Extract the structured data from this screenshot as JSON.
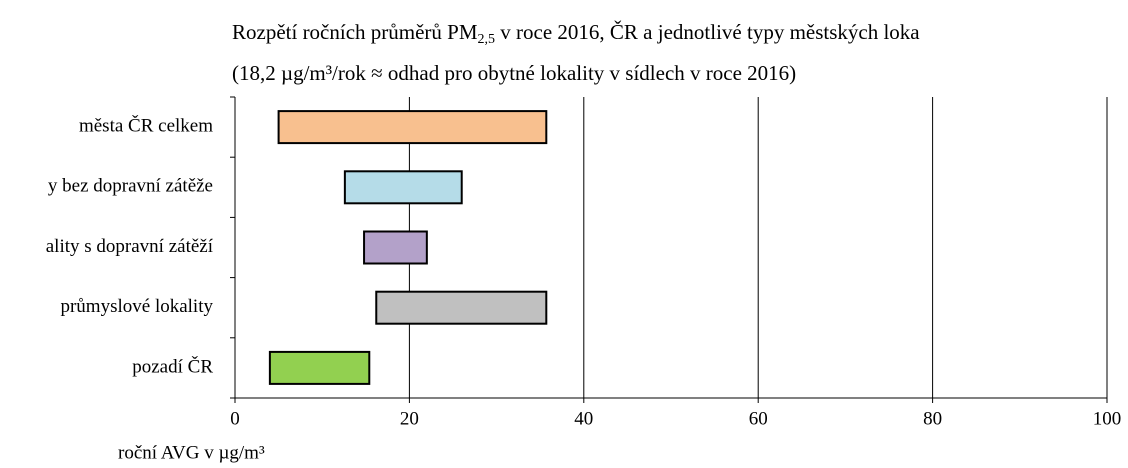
{
  "chart_data": {
    "type": "floating-bar",
    "title": "Rozpětí ročních průměrů PM",
    "title_subscript": "2,5",
    "title_rest": " v roce 2016, ČR a jednotlivé typy městských loka",
    "subtitle": "(18,2 µg/m³/rok ≈ odhad pro obytné lokality v sídlech v roce 2016)",
    "x_label": "roční AVG v µg/m³",
    "categories": [
      "města ČR celkem",
      "y bez dopravní zátěže",
      "ality s dopravní zátěží",
      "průmyslové lokality",
      "pozadí ČR"
    ],
    "start": [
      5.0,
      12.6,
      14.8,
      16.2,
      4.0
    ],
    "end": [
      35.7,
      26.0,
      22.0,
      35.7,
      15.4
    ],
    "colors": [
      "#f8c08f",
      "#b5dce8",
      "#b3a1c9",
      "#c0c0c0",
      "#92d050"
    ],
    "xlim": [
      0,
      100
    ],
    "xticks": [
      0,
      20,
      40,
      60,
      80,
      100
    ],
    "grid": true
  }
}
